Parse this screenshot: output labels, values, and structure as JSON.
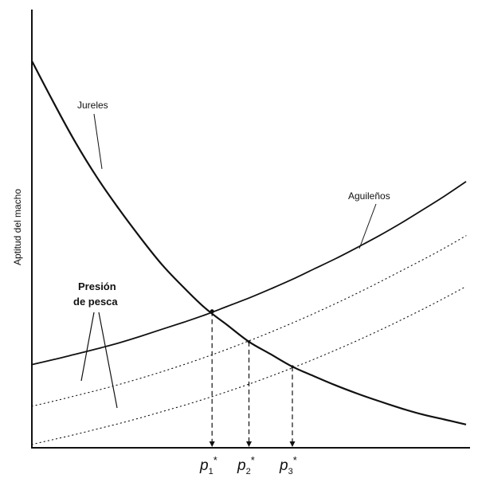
{
  "chart_data": {
    "type": "line",
    "title": "",
    "xlabel": "",
    "ylabel": "Aptitud del macho",
    "xlim": [
      0,
      10
    ],
    "ylim": [
      0,
      10
    ],
    "grid": false,
    "series": [
      {
        "name": "Jureles",
        "style": "solid",
        "weight": "bold",
        "x": [
          0,
          0.5,
          1,
          1.5,
          2,
          2.5,
          3,
          3.5,
          4,
          4.5,
          5,
          5.5,
          6,
          6.5,
          7,
          7.5,
          8,
          8.5,
          9,
          9.5,
          10
        ],
        "y": [
          9.3,
          8.3,
          7.35,
          6.5,
          5.75,
          5.05,
          4.4,
          3.85,
          3.35,
          2.95,
          2.55,
          2.25,
          1.95,
          1.72,
          1.5,
          1.3,
          1.12,
          0.95,
          0.8,
          0.68,
          0.56
        ]
      },
      {
        "name": "Aguileños",
        "style": "solid",
        "weight": "normal",
        "x": [
          0,
          0.5,
          1,
          1.5,
          2,
          2.5,
          3,
          3.5,
          4,
          4.5,
          5,
          5.5,
          6,
          6.5,
          7,
          7.5,
          8,
          8.5,
          9,
          9.5,
          10
        ],
        "y": [
          2.0,
          2.12,
          2.25,
          2.38,
          2.52,
          2.68,
          2.85,
          3.02,
          3.2,
          3.4,
          3.6,
          3.82,
          4.05,
          4.3,
          4.55,
          4.82,
          5.1,
          5.4,
          5.72,
          6.05,
          6.4
        ]
      },
      {
        "name": "",
        "style": "dotted",
        "weight": "thin",
        "x": [
          0,
          0.5,
          1,
          1.5,
          2,
          2.5,
          3,
          3.5,
          4,
          4.5,
          5,
          5.5,
          6,
          6.5,
          7,
          7.5,
          8,
          8.5,
          9,
          9.5,
          10
        ],
        "y": [
          1.0,
          1.12,
          1.25,
          1.38,
          1.52,
          1.67,
          1.83,
          2.0,
          2.18,
          2.37,
          2.57,
          2.78,
          3.0,
          3.23,
          3.47,
          3.72,
          3.98,
          4.25,
          4.52,
          4.8,
          5.1
        ]
      },
      {
        "name": "",
        "style": "dotted",
        "weight": "thin",
        "x": [
          0,
          0.5,
          1,
          1.5,
          2,
          2.5,
          3,
          3.5,
          4,
          4.5,
          5,
          5.5,
          6,
          6.5,
          7,
          7.5,
          8,
          8.5,
          9,
          9.5,
          10
        ],
        "y": [
          0.08,
          0.2,
          0.32,
          0.45,
          0.58,
          0.72,
          0.87,
          1.02,
          1.18,
          1.35,
          1.53,
          1.72,
          1.92,
          2.13,
          2.35,
          2.58,
          2.82,
          3.07,
          3.33,
          3.6,
          3.88
        ]
      }
    ],
    "annotations": {
      "jureles": "Jureles",
      "aguilenos": "Aguileños",
      "presion_line1": "Presión",
      "presion_line2": "de pesca"
    },
    "equilibria": [
      {
        "label": "p",
        "index": "1",
        "star": "*",
        "x": 4.15,
        "y": 3.28
      },
      {
        "label": "p",
        "index": "2",
        "star": "*",
        "x": 5.0,
        "y": 2.55
      },
      {
        "label": "p",
        "index": "3",
        "star": "*",
        "x": 6.0,
        "y": 1.95
      }
    ]
  }
}
